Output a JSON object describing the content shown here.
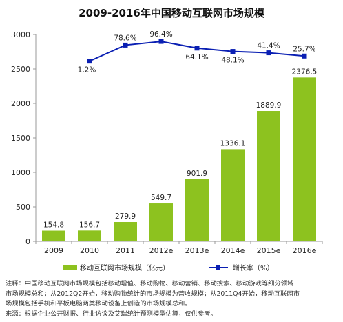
{
  "chart_data": {
    "type": "bar",
    "title": "2009-2016年中国移动互联网市场规模",
    "categories": [
      "2009",
      "2010",
      "2011",
      "2012e",
      "2013e",
      "2014e",
      "2015e",
      "2016e"
    ],
    "series": [
      {
        "name": "移动互联网市场规模（亿元）",
        "type": "bar",
        "color": "#8dc21f",
        "values": [
          154.8,
          156.7,
          279.9,
          549.7,
          901.9,
          1336.1,
          1889.9,
          2376.5
        ],
        "labels": [
          "154.8",
          "156.7",
          "279.9",
          "549.7",
          "901.9",
          "1336.1",
          "1889.9",
          "2376.5"
        ]
      },
      {
        "name": "增长率（%）",
        "type": "line",
        "color": "#0a1fb3",
        "values": [
          null,
          1.2,
          78.6,
          96.4,
          64.1,
          48.1,
          41.4,
          25.7
        ],
        "labels": [
          "",
          "1.2%",
          "78.6%",
          "96.4%",
          "64.1%",
          "48.1%",
          "41.4%",
          "25.7%"
        ]
      }
    ],
    "ylim": [
      0,
      3000
    ],
    "yticks": [
      "0",
      "500",
      "1000",
      "1500",
      "2000",
      "2500",
      "3000"
    ],
    "xlabel": "",
    "ylabel": "",
    "grid": false,
    "legend": "bottom"
  },
  "footnote": {
    "line1": "注释：中国移动互联网市场规模包括移动增值、移动购物、移动营销、移动搜索、移动游戏等细分领域",
    "line2": "市场规模总和；从2012Q2开始，移动购物统计的市场规模为营收规模；从2011Q4开始，移动互联网市",
    "line3": "场规模包括手机和平板电脑两类移动设备上创造的市场规模总和。",
    "line4": "来源：根据企业公开财报、行业访谈及艾瑞统计预测模型估算，仅供参考。"
  }
}
